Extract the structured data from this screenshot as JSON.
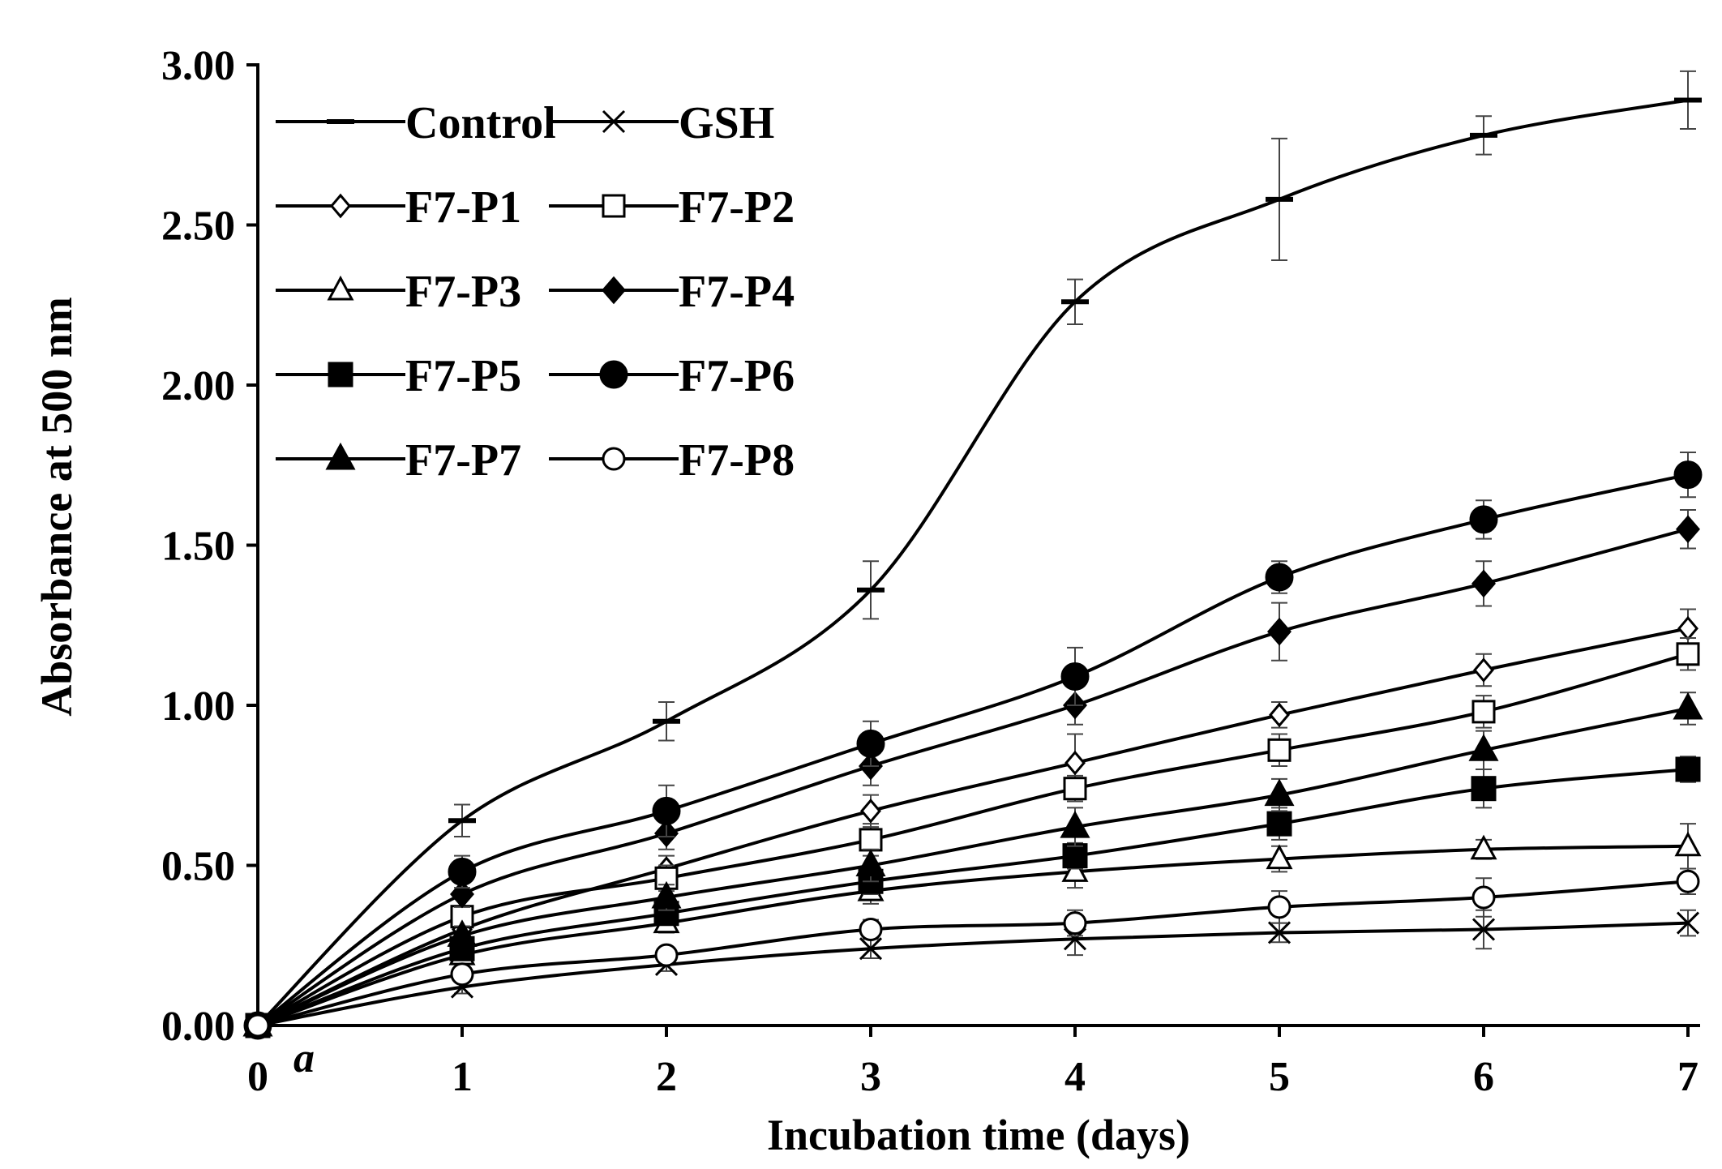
{
  "chart_data": {
    "type": "line",
    "title": "",
    "panel_label": "a",
    "xlabel": "Incubation time (days)",
    "ylabel": "Absorbance at 500 nm",
    "x": [
      0,
      1,
      2,
      3,
      4,
      5,
      6,
      7
    ],
    "x_tick_labels": [
      "0",
      "1",
      "2",
      "3",
      "4",
      "5",
      "6",
      "7"
    ],
    "xlim": [
      0,
      7.1
    ],
    "ylim": [
      0,
      3.0
    ],
    "y_ticks": [
      0,
      0.5,
      1.0,
      1.5,
      2.0,
      2.5,
      3.0
    ],
    "y_tick_labels": [
      "0.00",
      "0.50",
      "1.00",
      "1.50",
      "2.00",
      "2.50",
      "3.00"
    ],
    "grid": false,
    "legend_position": "top-left",
    "series": [
      {
        "name": "Control",
        "marker": "dash",
        "values": [
          0,
          0.64,
          0.95,
          1.36,
          2.26,
          2.58,
          2.78,
          2.89
        ],
        "errors": [
          0,
          0.05,
          0.06,
          0.09,
          0.07,
          0.19,
          0.06,
          0.09
        ]
      },
      {
        "name": "GSH",
        "marker": "x",
        "values": [
          0,
          0.12,
          0.19,
          0.24,
          0.27,
          0.29,
          0.3,
          0.32
        ],
        "errors": [
          0,
          0.02,
          0.02,
          0.03,
          0.05,
          0.03,
          0.06,
          0.04
        ]
      },
      {
        "name": "F7-P1",
        "marker": "diamond-open",
        "values": [
          0,
          0.3,
          0.49,
          0.67,
          0.82,
          0.97,
          1.11,
          1.24
        ],
        "errors": [
          0,
          0.03,
          0.04,
          0.05,
          0.09,
          0.04,
          0.05,
          0.06
        ]
      },
      {
        "name": "F7-P2",
        "marker": "square-open",
        "values": [
          0,
          0.34,
          0.46,
          0.58,
          0.74,
          0.86,
          0.98,
          1.16
        ],
        "errors": [
          0,
          0.03,
          0.04,
          0.05,
          0.04,
          0.05,
          0.05,
          0.05
        ]
      },
      {
        "name": "F7-P3",
        "marker": "triangle-open",
        "values": [
          0,
          0.22,
          0.32,
          0.42,
          0.48,
          0.52,
          0.55,
          0.56
        ],
        "errors": [
          0,
          0.02,
          0.03,
          0.04,
          0.05,
          0.04,
          0.03,
          0.07
        ]
      },
      {
        "name": "F7-P4",
        "marker": "diamond-filled",
        "values": [
          0,
          0.41,
          0.6,
          0.81,
          1.0,
          1.23,
          1.38,
          1.55
        ],
        "errors": [
          0,
          0.04,
          0.05,
          0.06,
          0.06,
          0.09,
          0.07,
          0.06
        ]
      },
      {
        "name": "F7-P5",
        "marker": "square-filled",
        "values": [
          0,
          0.24,
          0.35,
          0.45,
          0.53,
          0.63,
          0.74,
          0.8
        ],
        "errors": [
          0,
          0.02,
          0.03,
          0.04,
          0.04,
          0.05,
          0.06,
          0.04
        ]
      },
      {
        "name": "F7-P6",
        "marker": "circle-filled",
        "values": [
          0,
          0.48,
          0.67,
          0.88,
          1.09,
          1.4,
          1.58,
          1.72
        ],
        "errors": [
          0,
          0.05,
          0.08,
          0.07,
          0.09,
          0.05,
          0.06,
          0.07
        ]
      },
      {
        "name": "F7-P7",
        "marker": "triangle-filled",
        "values": [
          0,
          0.28,
          0.4,
          0.5,
          0.62,
          0.72,
          0.86,
          0.99
        ],
        "errors": [
          0,
          0.03,
          0.04,
          0.05,
          0.06,
          0.05,
          0.06,
          0.05
        ]
      },
      {
        "name": "F7-P8",
        "marker": "circle-open",
        "values": [
          0,
          0.16,
          0.22,
          0.3,
          0.32,
          0.37,
          0.4,
          0.45
        ],
        "errors": [
          0,
          0.02,
          0.02,
          0.03,
          0.04,
          0.05,
          0.06,
          0.04
        ]
      }
    ]
  }
}
